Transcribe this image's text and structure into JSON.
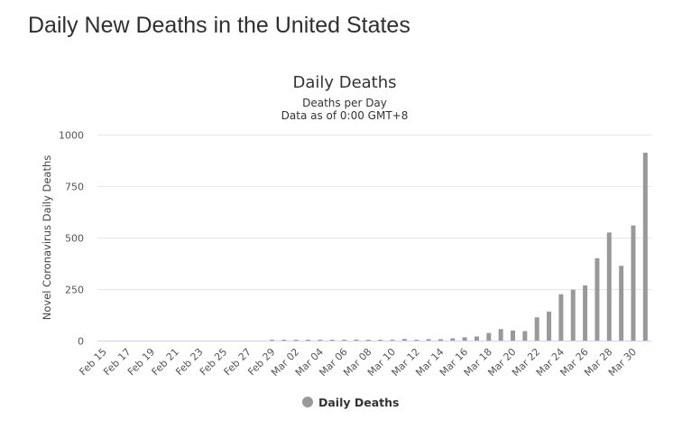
{
  "page": {
    "heading": "Daily New Deaths in the United States"
  },
  "chart_data": {
    "type": "bar",
    "title": "Daily Deaths",
    "subtitle": "Deaths per Day",
    "subtitle2": "Data as of 0:00 GMT+8",
    "xlabel": "",
    "ylabel": "Novel Coronavirus Daily Deaths",
    "ylim": [
      0,
      1000
    ],
    "yticks": [
      0,
      250,
      500,
      750,
      1000
    ],
    "grid": true,
    "legend_position": "bottom",
    "categories": [
      "Feb 15",
      "Feb 16",
      "Feb 17",
      "Feb 18",
      "Feb 19",
      "Feb 20",
      "Feb 21",
      "Feb 22",
      "Feb 23",
      "Feb 24",
      "Feb 25",
      "Feb 26",
      "Feb 27",
      "Feb 28",
      "Feb 29",
      "Mar 01",
      "Mar 02",
      "Mar 03",
      "Mar 04",
      "Mar 05",
      "Mar 06",
      "Mar 07",
      "Mar 08",
      "Mar 09",
      "Mar 10",
      "Mar 11",
      "Mar 12",
      "Mar 13",
      "Mar 14",
      "Mar 15",
      "Mar 16",
      "Mar 17",
      "Mar 18",
      "Mar 19",
      "Mar 20",
      "Mar 21",
      "Mar 22",
      "Mar 23",
      "Mar 24",
      "Mar 25",
      "Mar 26",
      "Mar 27",
      "Mar 28",
      "Mar 29",
      "Mar 30",
      "Mar 31"
    ],
    "tick_labels": [
      "Feb 15",
      "Feb 17",
      "Feb 19",
      "Feb 21",
      "Feb 23",
      "Feb 25",
      "Feb 27",
      "Feb 29",
      "Mar 02",
      "Mar 04",
      "Mar 06",
      "Mar 08",
      "Mar 10",
      "Mar 12",
      "Mar 14",
      "Mar 16",
      "Mar 18",
      "Mar 20",
      "Mar 22",
      "Mar 24",
      "Mar 26",
      "Mar 28",
      "Mar 30"
    ],
    "series": [
      {
        "name": "Daily Deaths",
        "color": "#999999",
        "values": [
          0,
          0,
          0,
          0,
          0,
          0,
          0,
          0,
          0,
          0,
          0,
          0,
          0,
          0,
          1,
          1,
          4,
          1,
          4,
          1,
          2,
          5,
          4,
          4,
          4,
          8,
          2,
          7,
          7,
          11,
          16,
          20,
          37,
          56,
          49,
          46,
          113,
          141,
          225,
          247,
          268,
          400,
          525,
          363,
          559,
          912
        ]
      }
    ]
  }
}
